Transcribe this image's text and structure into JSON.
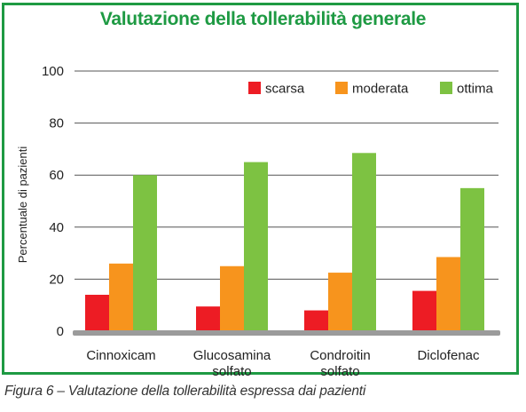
{
  "title": "Valutazione della tollerabilità generale",
  "caption": "Figura 6 – Valutazione della tollerabilità espressa dai pazienti",
  "colors": {
    "frame": "#1e9a43",
    "title": "#1e9a43"
  },
  "chart_data": {
    "type": "bar",
    "title": "Valutazione della tollerabilità generale",
    "xlabel": "",
    "ylabel": "Percentuale di pazienti",
    "ylim": [
      0,
      100
    ],
    "yticks": [
      "0",
      "20",
      "40",
      "60",
      "80",
      "100"
    ],
    "grid": true,
    "legend_position": "top-right",
    "categories": [
      [
        "Cinnoxicam"
      ],
      [
        "Glucosamina",
        "solfato"
      ],
      [
        "Condroitin",
        "solfato"
      ],
      [
        "Diclofenac"
      ]
    ],
    "series": [
      {
        "name": "scarsa",
        "color": "#ed1c24",
        "values": [
          14,
          9.5,
          8,
          15.5
        ]
      },
      {
        "name": "moderata",
        "color": "#f7941d",
        "values": [
          26,
          25,
          22.5,
          28.5
        ]
      },
      {
        "name": "ottima",
        "color": "#7dc242",
        "values": [
          60,
          65,
          68.5,
          55
        ]
      }
    ]
  }
}
